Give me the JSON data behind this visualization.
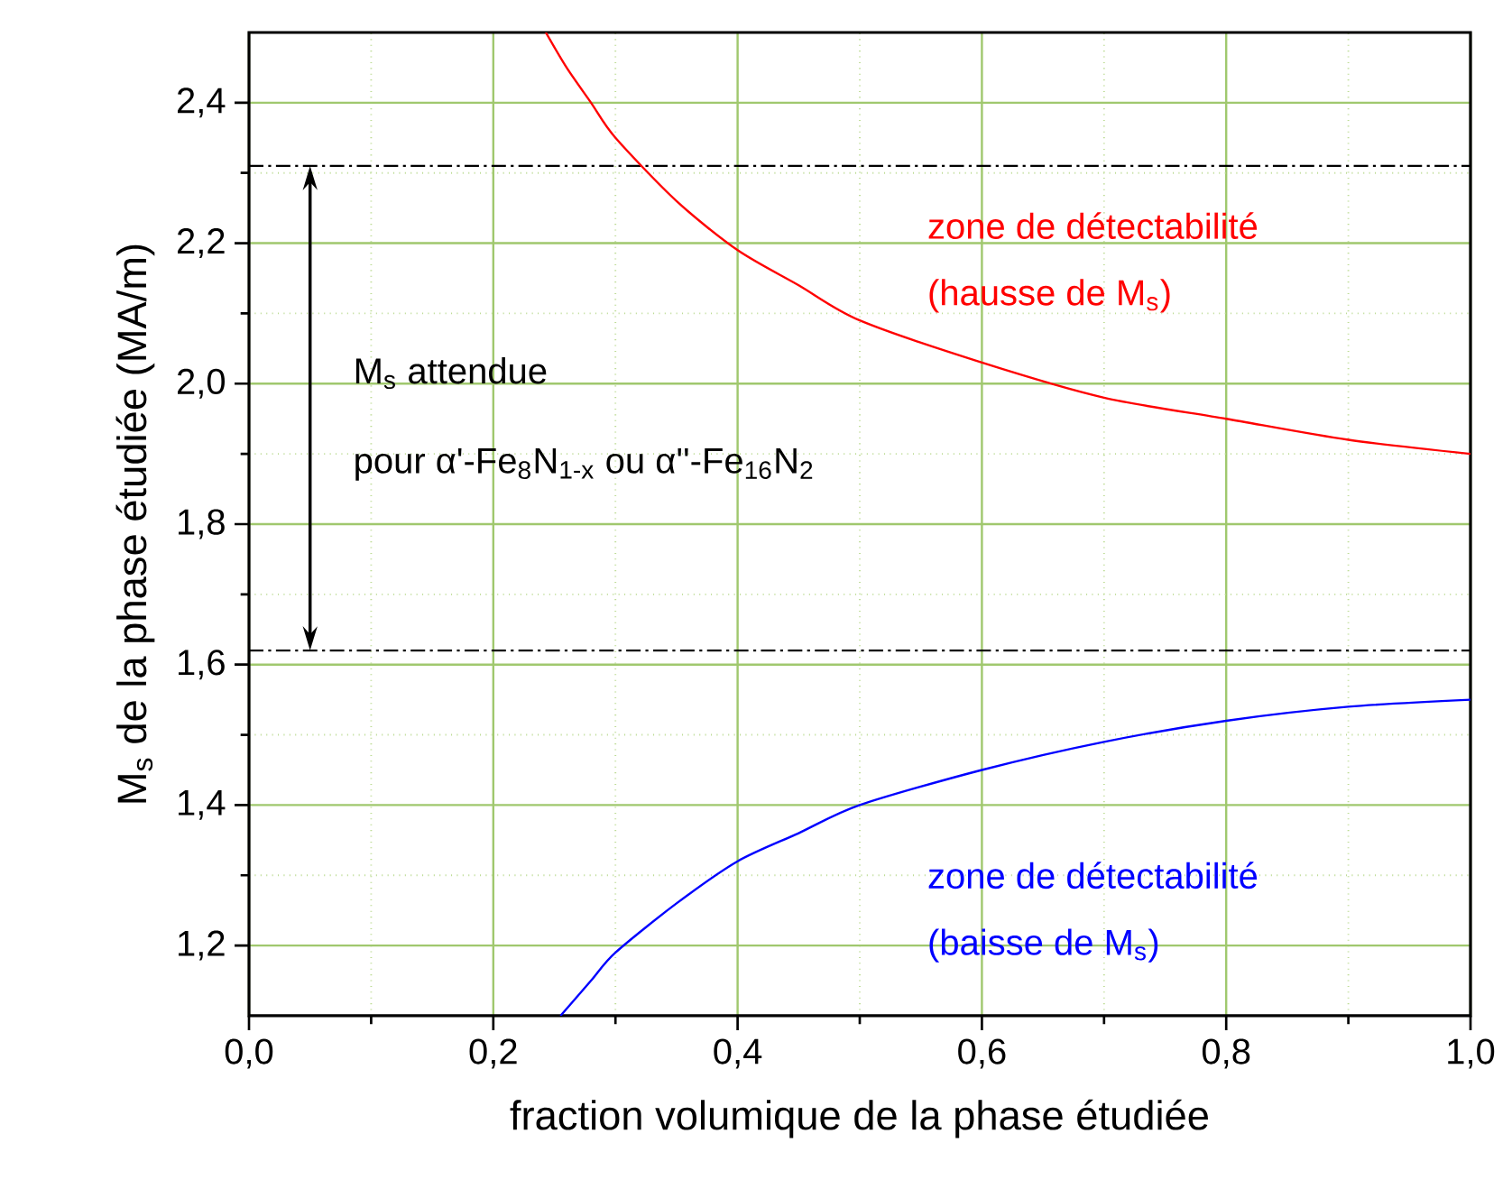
{
  "chart_data": {
    "type": "line",
    "xlabel": "fraction volumique de la phase étudiée",
    "ylabel": "M$_{s}$ de la phase étudiée (MA/m)",
    "xlim": [
      0,
      1.0
    ],
    "ylim": [
      1.1,
      2.5
    ],
    "xticks": [
      {
        "value": 0,
        "label": "0,0"
      },
      {
        "value": 0.1,
        "label": null
      },
      {
        "value": 0.2,
        "label": "0,2"
      },
      {
        "value": 0.3,
        "label": null
      },
      {
        "value": 0.4,
        "label": "0,4"
      },
      {
        "value": 0.5,
        "label": null
      },
      {
        "value": 0.6,
        "label": "0,6"
      },
      {
        "value": 0.7,
        "label": null
      },
      {
        "value": 0.8,
        "label": "0,8"
      },
      {
        "value": 0.9,
        "label": null
      },
      {
        "value": 1.0,
        "label": "1,0"
      }
    ],
    "yticks": [
      {
        "value": 1.2,
        "label": "1,2"
      },
      {
        "value": 1.3,
        "label": null
      },
      {
        "value": 1.4,
        "label": "1,4"
      },
      {
        "value": 1.5,
        "label": null
      },
      {
        "value": 1.6,
        "label": "1,6"
      },
      {
        "value": 1.7,
        "label": null
      },
      {
        "value": 1.8,
        "label": "1,8"
      },
      {
        "value": 1.9,
        "label": null
      },
      {
        "value": 2.0,
        "label": "2,0"
      },
      {
        "value": 2.1,
        "label": null
      },
      {
        "value": 2.2,
        "label": "2,2"
      },
      {
        "value": 2.3,
        "label": null
      },
      {
        "value": 2.4,
        "label": "2,4"
      }
    ],
    "grid": true,
    "marker": "none",
    "line_style": "solid",
    "series": [
      {
        "color": "#ff0000",
        "x": [
          0.243,
          0.26,
          0.28,
          0.3,
          0.35,
          0.4,
          0.45,
          0.5,
          0.6,
          0.7,
          0.8,
          0.9,
          1.0
        ],
        "values": [
          2.5,
          2.45,
          2.4,
          2.35,
          2.26,
          2.19,
          2.14,
          2.09,
          2.03,
          1.98,
          1.95,
          1.92,
          1.9
        ]
      },
      {
        "color": "#0000ff",
        "x": [
          0.255,
          0.28,
          0.3,
          0.35,
          0.4,
          0.45,
          0.5,
          0.6,
          0.7,
          0.8,
          0.9,
          1.0
        ],
        "values": [
          1.1,
          1.15,
          1.19,
          1.26,
          1.32,
          1.36,
          1.4,
          1.45,
          1.49,
          1.52,
          1.54,
          1.55
        ]
      }
    ],
    "ref_lines": [
      {
        "axis": "y",
        "value": 2.31,
        "color": "#000000",
        "line_style": "dashdot"
      },
      {
        "axis": "y",
        "value": 1.62,
        "color": "#000000",
        "line_style": "dashdot"
      }
    ],
    "annotations": [
      "M$_{s}$ attendue",
      "pour α'-Fe$_{8}$N$_{1-x}$ ou α''-Fe$_{16}$N$_{2}$",
      "zone de détectabilité",
      "(hausse de M$_{s}$)",
      "zone de détectabilité",
      "(baisse de M$_{s}$)"
    ]
  }
}
